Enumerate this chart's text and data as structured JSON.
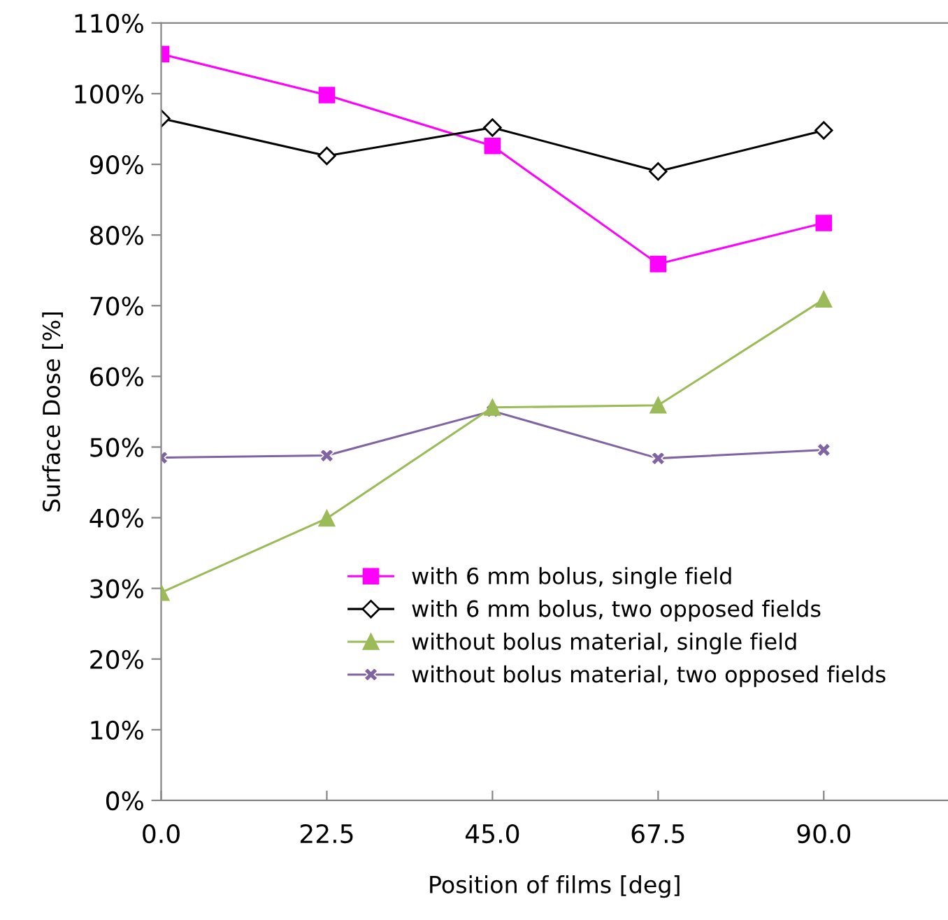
{
  "chart_data": {
    "type": "line",
    "xlabel": "Position of films [deg]",
    "ylabel": "Surface Dose [%]",
    "categories": [
      "0.0",
      "22.5",
      "45.0",
      "67.5",
      "90.0"
    ],
    "series": [
      {
        "name": "with 6 mm bolus, single field",
        "color": "#ff00ff",
        "marker": "square",
        "values": [
          105.6,
          99.8,
          92.6,
          75.9,
          81.7
        ]
      },
      {
        "name": "with 6 mm bolus, two opposed fields",
        "color": "#000000",
        "marker": "diamond",
        "values": [
          96.5,
          91.2,
          95.2,
          89.0,
          94.8
        ]
      },
      {
        "name": "without bolus material, single field",
        "color": "#9bbb59",
        "marker": "triangle",
        "values": [
          29.4,
          39.9,
          55.6,
          55.9,
          70.9
        ]
      },
      {
        "name": "without bolus material, two opposed fields",
        "color": "#8064a2",
        "marker": "cross",
        "values": [
          48.5,
          48.8,
          55.1,
          48.4,
          49.6
        ]
      }
    ],
    "ylim": [
      0,
      110
    ],
    "yticks": [
      {
        "value": 0,
        "label": "0%"
      },
      {
        "value": 10,
        "label": "10%"
      },
      {
        "value": 20,
        "label": "20%"
      },
      {
        "value": 30,
        "label": "30%"
      },
      {
        "value": 40,
        "label": "40%"
      },
      {
        "value": 50,
        "label": "50%"
      },
      {
        "value": 60,
        "label": "60%"
      },
      {
        "value": 70,
        "label": "70%"
      },
      {
        "value": 80,
        "label": "80%"
      },
      {
        "value": 90,
        "label": "90%"
      },
      {
        "value": 100,
        "label": "100%"
      },
      {
        "value": 110,
        "label": "110%"
      }
    ],
    "grid": false,
    "legend": "bottom",
    "line_style": "solid"
  }
}
